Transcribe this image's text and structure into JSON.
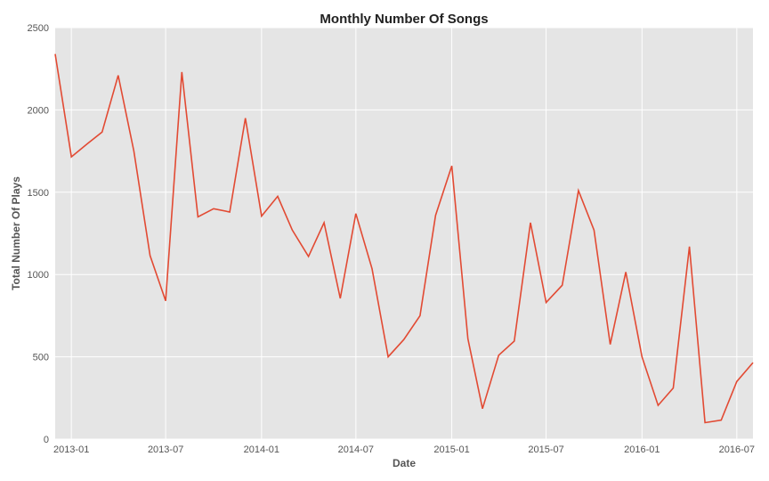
{
  "chart_data": {
    "type": "line",
    "title": "Monthly Number Of Songs",
    "xlabel": "Date",
    "ylabel": "Total Number Of Plays",
    "ylim": [
      0,
      2500
    ],
    "xlim": [
      "2012-12-01",
      "2016-08-01"
    ],
    "grid": true,
    "yticks": [
      0,
      500,
      1000,
      1500,
      2000,
      2500
    ],
    "xticks": [
      "2013-01",
      "2013-07",
      "2014-01",
      "2014-07",
      "2015-01",
      "2015-07",
      "2016-01",
      "2016-07"
    ],
    "line_color": "#e24a33",
    "background_color": "#e5e5e5",
    "series": [
      {
        "x": [
          "2012-12",
          "2013-01",
          "2013-02",
          "2013-03",
          "2013-04",
          "2013-05",
          "2013-06",
          "2013-07",
          "2013-08",
          "2013-09",
          "2013-10",
          "2013-11",
          "2013-12",
          "2014-01",
          "2014-02",
          "2014-03",
          "2014-04",
          "2014-05",
          "2014-06",
          "2014-07",
          "2014-08",
          "2014-09",
          "2014-10",
          "2014-11",
          "2014-12",
          "2015-01",
          "2015-02",
          "2015-03",
          "2015-04",
          "2015-05",
          "2015-06",
          "2015-07",
          "2015-08",
          "2015-09",
          "2015-10",
          "2015-11",
          "2015-12",
          "2016-01",
          "2016-02",
          "2016-03",
          "2016-04",
          "2016-05",
          "2016-06",
          "2016-07",
          "2016-08"
        ],
        "values": [
          2340,
          1715,
          1795,
          1865,
          2210,
          1750,
          1115,
          840,
          2230,
          1350,
          1400,
          1380,
          1950,
          1355,
          1475,
          1270,
          1110,
          1315,
          855,
          1370,
          1035,
          500,
          605,
          750,
          1360,
          1660,
          610,
          185,
          510,
          595,
          1315,
          830,
          935,
          1510,
          1270,
          575,
          1015,
          500,
          205,
          310,
          1170,
          100,
          115,
          350,
          465
        ]
      }
    ]
  }
}
